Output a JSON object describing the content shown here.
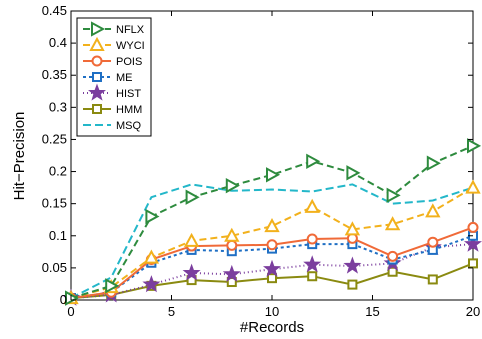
{
  "chart_data": {
    "type": "line",
    "xlabel": "#Records",
    "ylabel": "Hit−Precision",
    "xlim": [
      0,
      20
    ],
    "ylim": [
      0,
      0.45
    ],
    "xticks": [
      0,
      5,
      10,
      15,
      20
    ],
    "xtick_labels": [
      "0",
      "5",
      "10",
      "15",
      "20"
    ],
    "yticks": [
      0,
      0.05,
      0.1,
      0.15,
      0.2,
      0.25,
      0.3,
      0.35,
      0.4,
      0.45
    ],
    "ytick_labels": [
      "0",
      "0.05",
      "0.1",
      "0.15",
      "0.2",
      "0.25",
      "0.3",
      "0.35",
      "0.4",
      "0.45"
    ],
    "grid": false,
    "legend_position": "top-left",
    "x": [
      0,
      2,
      4,
      6,
      8,
      10,
      12,
      14,
      16,
      18,
      20
    ],
    "series": [
      {
        "name": "NFLX",
        "color": "#2e8b3e",
        "dash": "7,4",
        "marker": "triangle-right",
        "values": [
          0.003,
          0.022,
          0.13,
          0.16,
          0.178,
          0.195,
          0.216,
          0.198,
          0.163,
          0.213,
          0.24
        ]
      },
      {
        "name": "WYCI",
        "color": "#f2b11c",
        "dash": "7,4",
        "marker": "triangle-up",
        "values": [
          0.003,
          0.02,
          0.066,
          0.092,
          0.1,
          0.115,
          0.145,
          0.11,
          0.118,
          0.138,
          0.175
        ]
      },
      {
        "name": "POIS",
        "color": "#f06a38",
        "dash": "",
        "marker": "circle",
        "values": [
          0.003,
          0.012,
          0.063,
          0.084,
          0.085,
          0.086,
          0.095,
          0.096,
          0.068,
          0.09,
          0.113
        ]
      },
      {
        "name": "ME",
        "color": "#1f6fc4",
        "dash": "3,3",
        "marker": "square",
        "values": [
          0.003,
          0.012,
          0.058,
          0.078,
          0.076,
          0.08,
          0.087,
          0.087,
          0.063,
          0.078,
          0.1
        ]
      },
      {
        "name": "HIST",
        "color": "#7b3e9e",
        "dash": "1,3",
        "marker": "star",
        "values": [
          0.003,
          0.008,
          0.024,
          0.042,
          0.04,
          0.048,
          0.055,
          0.053,
          0.057,
          0.082,
          0.087
        ]
      },
      {
        "name": "HMM",
        "color": "#8a8a10",
        "dash": "",
        "marker": "square",
        "values": [
          0.003,
          0.008,
          0.022,
          0.031,
          0.028,
          0.034,
          0.037,
          0.024,
          0.044,
          0.032,
          0.057
        ]
      },
      {
        "name": "MSQ",
        "color": "#23b7c9",
        "dash": "8,4",
        "marker": "none",
        "values": [
          0.003,
          0.035,
          0.16,
          0.18,
          0.17,
          0.172,
          0.169,
          0.18,
          0.15,
          0.155,
          0.175
        ]
      }
    ]
  }
}
